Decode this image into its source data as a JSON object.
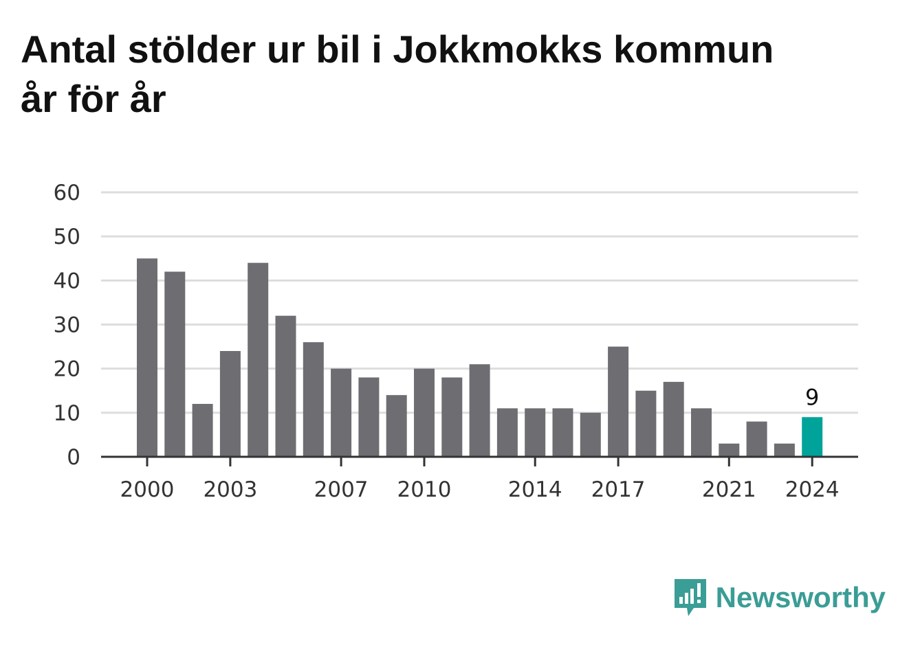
{
  "title": "Antal stölder ur bil i Jokkmokks kommun år för år",
  "brand": {
    "name": "Newsworthy",
    "icon": "newsworthy-logo-icon",
    "color": "#3a9d96"
  },
  "colors": {
    "bar": "#6e6d72",
    "highlight": "#00a39a",
    "grid": "#dddddd",
    "axis": "#333333"
  },
  "chart_data": {
    "type": "bar",
    "categories": [
      "2000",
      "2001",
      "2002",
      "2003",
      "2004",
      "2005",
      "2006",
      "2007",
      "2008",
      "2009",
      "2010",
      "2011",
      "2012",
      "2013",
      "2014",
      "2015",
      "2016",
      "2017",
      "2018",
      "2019",
      "2020",
      "2021",
      "2022",
      "2023",
      "2024"
    ],
    "values": [
      45,
      42,
      12,
      24,
      44,
      32,
      26,
      20,
      18,
      14,
      20,
      18,
      21,
      11,
      11,
      11,
      10,
      25,
      15,
      17,
      11,
      3,
      8,
      3,
      9
    ],
    "x_tick_labels": [
      "2000",
      "2003",
      "2007",
      "2010",
      "2014",
      "2017",
      "2021",
      "2024"
    ],
    "y_ticks": [
      0,
      10,
      20,
      30,
      40,
      50,
      60
    ],
    "ylim": [
      0,
      60
    ],
    "highlight_category": "2024",
    "highlight_label": "9",
    "grid": true,
    "title": "Antal stölder ur bil i Jokkmokks kommun år för år",
    "xlabel": "",
    "ylabel": ""
  }
}
